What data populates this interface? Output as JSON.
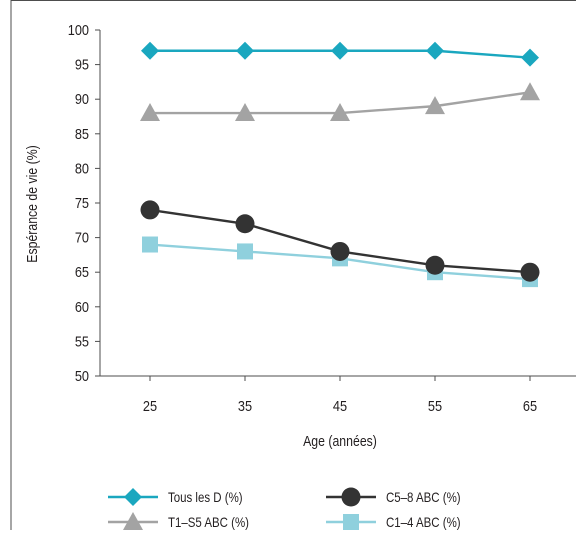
{
  "chart_data": {
    "type": "line",
    "x": [
      25,
      35,
      45,
      55,
      65
    ],
    "xlabel": "Age (années)",
    "ylabel": "Espérance de vie (%)",
    "xlim": [
      20,
      70
    ],
    "ylim": [
      50,
      100
    ],
    "yticks": [
      50,
      55,
      60,
      65,
      70,
      75,
      80,
      85,
      90,
      95,
      100
    ],
    "grid": false,
    "legend_position": "bottom",
    "series": [
      {
        "name": "Tous les D (%)",
        "values": [
          97,
          97,
          97,
          97,
          96
        ],
        "color": "#1aa7bf",
        "marker": "diamond"
      },
      {
        "name": "T1–S5 ABC (%)",
        "values": [
          88,
          88,
          88,
          89,
          91
        ],
        "color": "#a3a3a3",
        "marker": "triangle"
      },
      {
        "name": "C5–8 ABC (%)",
        "values": [
          74,
          72,
          68,
          66,
          65
        ],
        "color": "#333333",
        "marker": "circle"
      },
      {
        "name": "C1–4 ABC (%)",
        "values": [
          69,
          68,
          67,
          65,
          64
        ],
        "color": "#8fd0dd",
        "marker": "square"
      }
    ]
  }
}
